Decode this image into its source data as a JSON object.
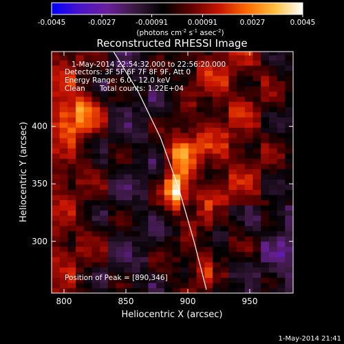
{
  "colorbar": {
    "ticks": [
      "-0.0045",
      "-0.0027",
      "-0.00091",
      "0.00091",
      "0.0027",
      "0.0045"
    ],
    "units_main": "(photons cm",
    "units_exp1": "-2",
    "units_mid": " s",
    "units_exp2": "-1",
    "units_tail": " asec",
    "units_exp3": "-2",
    "units_close": ")",
    "stops": [
      "#0000ff",
      "#4a14c8",
      "#6a1f9c",
      "#3a1a3f",
      "#000000",
      "#600000",
      "#c81400",
      "#ff6a00",
      "#ffc040",
      "#ffffff"
    ]
  },
  "chart_data": {
    "type": "heatmap",
    "title": "Reconstructed RHESSI Image",
    "xlabel": "Heliocentric X (arcsec)",
    "ylabel": "Heliocentric Y (arcsec)",
    "xlim": [
      790,
      985
    ],
    "ylim": [
      255,
      465
    ],
    "x_ticks": [
      800,
      850,
      900,
      950
    ],
    "y_ticks": [
      300,
      350,
      400
    ],
    "clim": [
      -0.0045,
      0.0045
    ],
    "peak": {
      "x": 890,
      "y": 346
    },
    "sources": [
      {
        "x": 890,
        "y": 346,
        "amp": 0.0045,
        "sx": 6,
        "sy": 12
      },
      {
        "x": 895,
        "y": 378,
        "amp": 0.0032,
        "sx": 9,
        "sy": 10
      },
      {
        "x": 810,
        "y": 410,
        "amp": 0.0024,
        "sx": 12,
        "sy": 14
      }
    ],
    "limb_points": [
      [
        840,
        465
      ],
      [
        860,
        430
      ],
      [
        878,
        390
      ],
      [
        893,
        345
      ],
      [
        905,
        300
      ],
      [
        915,
        258
      ]
    ],
    "annotations": {
      "time": "1-May-2014 22:54:32.000 to 22:56:20.000",
      "detectors": "Detectors: 3F 5F 6F 7F 8F 9F, Att 0",
      "energy": "Energy Range: 6.0 - 12.0 keV",
      "method": "Clean",
      "counts": "Total counts: 1.22E+04",
      "peak_label": "Position of Peak = [890,346]"
    }
  },
  "footer": {
    "timestamp": "1-May-2014 21:41"
  }
}
